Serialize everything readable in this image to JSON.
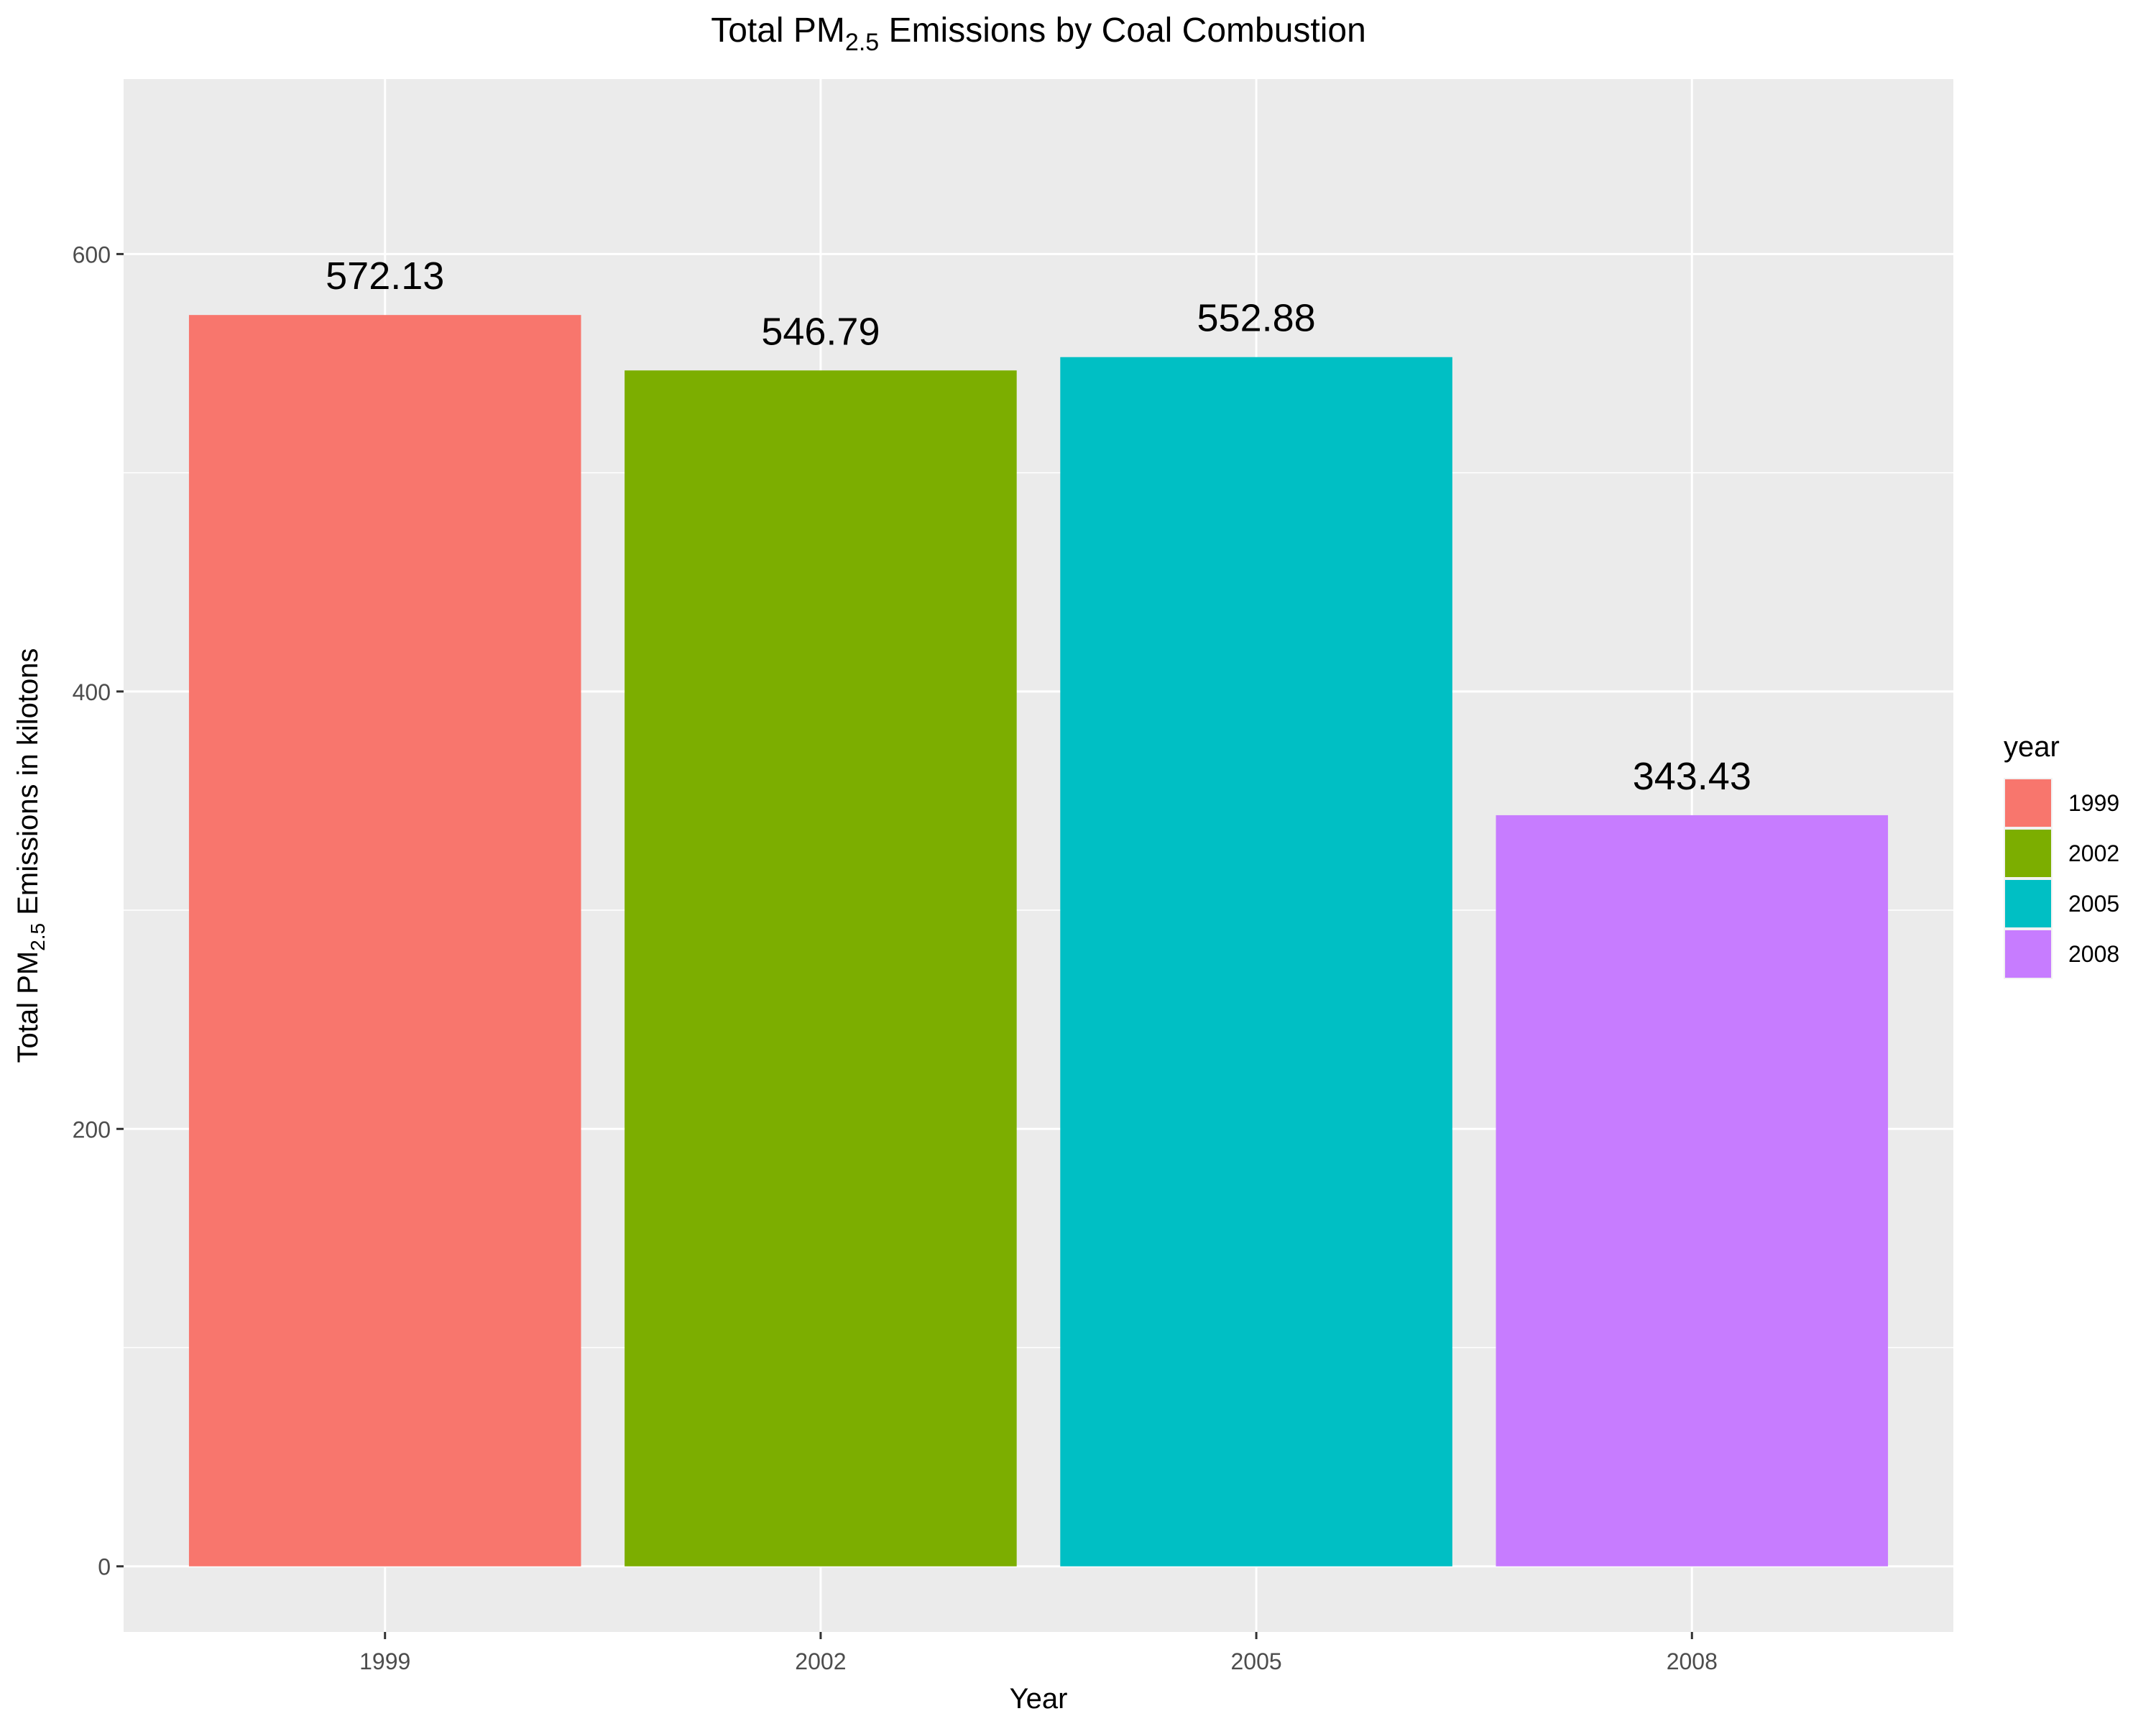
{
  "chart_data": {
    "type": "bar",
    "title": {
      "prefix": "Total PM",
      "subscript": "2.5",
      "suffix": " Emissions by Coal Combustion"
    },
    "xlabel": "Year",
    "ylabel": {
      "prefix": "Total PM",
      "subscript": "2.5",
      "suffix": " Emissions in kilotons"
    },
    "categories": [
      "1999",
      "2002",
      "2005",
      "2008"
    ],
    "values": [
      572.13,
      546.79,
      552.88,
      343.43
    ],
    "value_labels": [
      "572.13",
      "546.79",
      "552.88",
      "343.43"
    ],
    "colors": [
      "#F8766D",
      "#7CAE00",
      "#00BFC4",
      "#C77CFF"
    ],
    "ylim": [
      -30,
      680
    ],
    "yticks": [
      0,
      200,
      400,
      600
    ],
    "yticks_minor": [
      100,
      300,
      500
    ],
    "grid": true,
    "panel_background": "#EBEBEB",
    "legend": {
      "title": "year",
      "position": "right",
      "entries": [
        "1999",
        "2002",
        "2005",
        "2008"
      ]
    }
  }
}
